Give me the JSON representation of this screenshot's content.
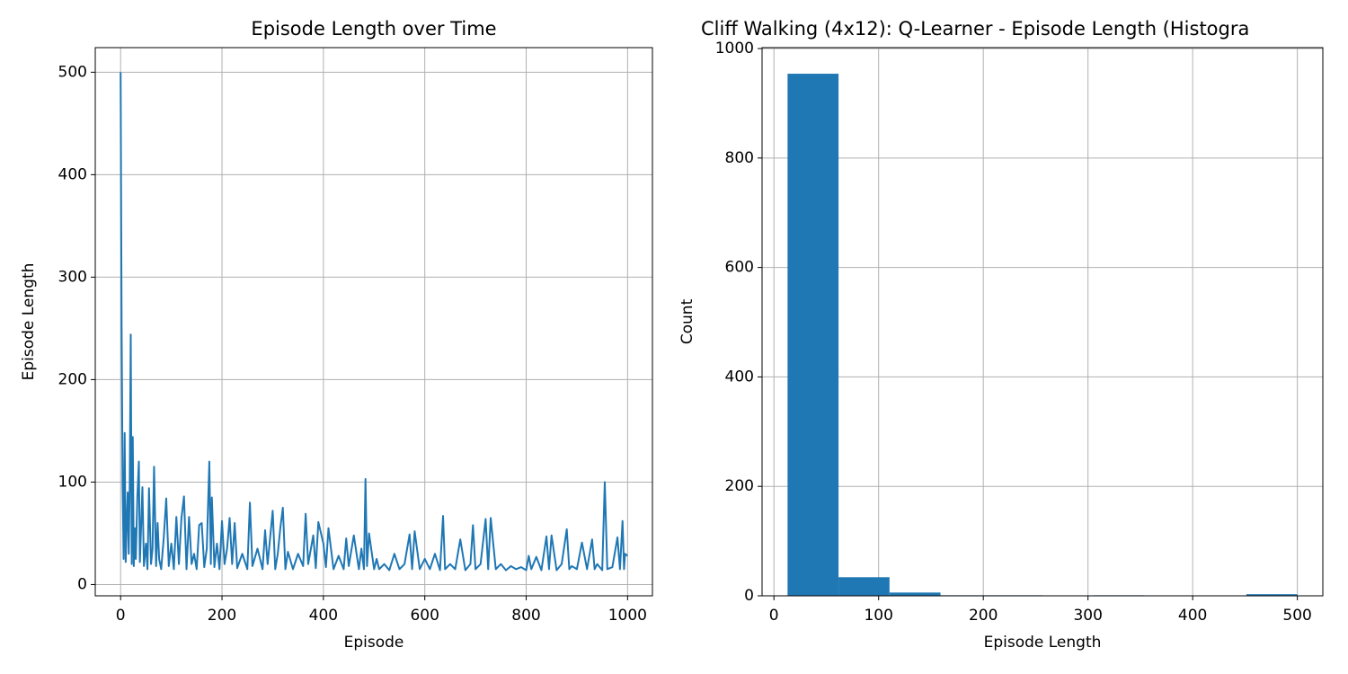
{
  "chart_data": [
    {
      "type": "line",
      "title": "Episode Length over Time",
      "xlabel": "Episode",
      "ylabel": "Episode Length",
      "color": "#1f77b4",
      "grid": true,
      "xlim": [
        -50,
        1049
      ],
      "xticks": [
        0,
        200,
        400,
        600,
        800,
        1000
      ],
      "ylim": [
        -11,
        524
      ],
      "yticks": [
        0,
        100,
        200,
        300,
        400,
        500
      ],
      "x": [
        0,
        2,
        4,
        6,
        8,
        10,
        12,
        14,
        16,
        18,
        20,
        22,
        24,
        26,
        28,
        30,
        33,
        36,
        38,
        40,
        43,
        46,
        50,
        53,
        56,
        60,
        63,
        66,
        70,
        73,
        76,
        80,
        85,
        90,
        95,
        100,
        105,
        110,
        115,
        120,
        125,
        130,
        135,
        140,
        145,
        150,
        155,
        160,
        165,
        170,
        175,
        178,
        180,
        185,
        190,
        195,
        200,
        205,
        210,
        215,
        220,
        225,
        230,
        240,
        250,
        255,
        260,
        270,
        280,
        285,
        290,
        300,
        305,
        310,
        315,
        320,
        325,
        330,
        340,
        350,
        360,
        365,
        370,
        380,
        385,
        390,
        400,
        405,
        410,
        420,
        430,
        440,
        445,
        450,
        460,
        470,
        475,
        480,
        483,
        486,
        490,
        500,
        505,
        510,
        520,
        530,
        540,
        550,
        560,
        570,
        575,
        580,
        590,
        600,
        610,
        620,
        630,
        636,
        640,
        650,
        660,
        670,
        680,
        690,
        695,
        700,
        710,
        720,
        725,
        730,
        740,
        750,
        760,
        770,
        780,
        790,
        800,
        805,
        810,
        820,
        830,
        840,
        845,
        850,
        860,
        870,
        880,
        885,
        890,
        900,
        910,
        920,
        930,
        935,
        940,
        950,
        955,
        960,
        970,
        980,
        985,
        990,
        993,
        995,
        1000
      ],
      "values": [
        500,
        250,
        95,
        25,
        148,
        22,
        60,
        90,
        30,
        97,
        244,
        20,
        144,
        18,
        55,
        25,
        85,
        120,
        22,
        50,
        95,
        18,
        40,
        15,
        94,
        20,
        35,
        115,
        18,
        60,
        25,
        15,
        45,
        84,
        18,
        40,
        15,
        66,
        20,
        65,
        86,
        15,
        66,
        20,
        30,
        15,
        58,
        60,
        17,
        35,
        120,
        20,
        85,
        17,
        40,
        15,
        62,
        20,
        35,
        65,
        20,
        60,
        16,
        30,
        15,
        80,
        18,
        35,
        15,
        53,
        20,
        72,
        15,
        30,
        55,
        75,
        15,
        32,
        15,
        30,
        18,
        69,
        20,
        48,
        16,
        61,
        40,
        17,
        55,
        15,
        28,
        15,
        45,
        18,
        48,
        15,
        35,
        15,
        103,
        18,
        50,
        15,
        25,
        15,
        20,
        14,
        30,
        15,
        20,
        49,
        15,
        52,
        15,
        25,
        15,
        30,
        14,
        67,
        15,
        20,
        15,
        44,
        14,
        20,
        58,
        15,
        20,
        64,
        15,
        65,
        15,
        20,
        14,
        18,
        15,
        17,
        14,
        28,
        15,
        27,
        14,
        47,
        15,
        48,
        14,
        20,
        54,
        15,
        18,
        15,
        41,
        15,
        44,
        15,
        20,
        14,
        100,
        15,
        17,
        46,
        15,
        62,
        15,
        30,
        28
      ]
    },
    {
      "type": "histogram",
      "title": "Cliff Walking (4x12): Q-Learner - Episode Length (Histogra",
      "xlabel": "Episode Length",
      "ylabel": "Count",
      "color": "#1f77b4",
      "grid": true,
      "xlim": [
        -11.35,
        524.35
      ],
      "xticks": [
        0,
        100,
        200,
        300,
        400,
        500
      ],
      "ylim": [
        0,
        1001.7
      ],
      "yticks": [
        0,
        200,
        400,
        600,
        800,
        1000
      ],
      "bins": [
        13,
        61.7,
        110.4,
        159.1,
        207.8,
        256.5,
        305.2,
        353.9,
        402.6,
        451.3,
        500
      ],
      "values": [
        954,
        34,
        6,
        1,
        1,
        0,
        1,
        0,
        0,
        3
      ]
    }
  ]
}
